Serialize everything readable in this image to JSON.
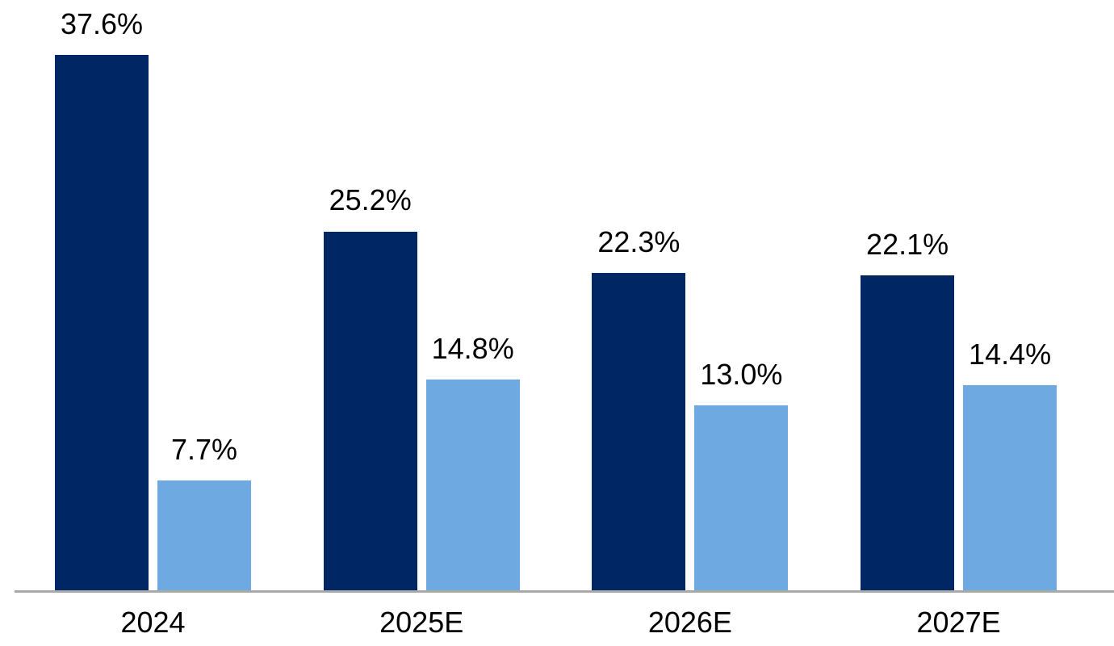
{
  "chart_data": {
    "type": "bar",
    "title": "",
    "xlabel": "",
    "ylabel": "",
    "categories": [
      "2024",
      "2025E",
      "2026E",
      "2027E"
    ],
    "series": [
      {
        "name": "dark-blue",
        "color": "#002664",
        "values": [
          37.6,
          25.2,
          22.3,
          22.1
        ],
        "labels": [
          "37.6%",
          "25.2%",
          "22.3%",
          "22.1%"
        ]
      },
      {
        "name": "light-blue",
        "color": "#6EA9E1",
        "values": [
          7.7,
          14.8,
          13.0,
          14.4
        ],
        "labels": [
          "7.7%",
          "14.8%",
          "13.0%",
          "14.4%"
        ]
      }
    ],
    "ylim": [
      0,
      40
    ],
    "grid": false,
    "legend": "none",
    "value_format": "percent",
    "data_labels_shown": true,
    "axis_line_color": "#A9A9A9",
    "label_color": "#000000",
    "background_color": "#FFFFFF"
  }
}
